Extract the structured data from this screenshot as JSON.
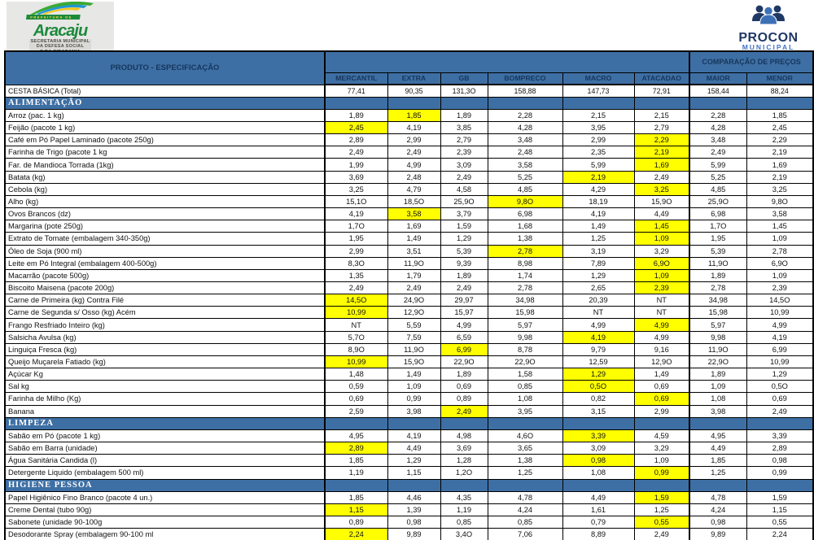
{
  "logos": {
    "aracaju": {
      "banner": "PREFEITURA DE",
      "city": "Aracaju",
      "secretaria_lines": [
        "SECRETARIA MUNICIPAL",
        "DA DEFESA SOCIAL",
        "E DA CIDADANIA"
      ]
    },
    "procon": {
      "name": "PROCON",
      "sub": "MUNICIPAL"
    }
  },
  "colors": {
    "header_blue": "#3e6fa4",
    "header_text_navy": "#16365c",
    "highlight_yellow": "#ffff00",
    "aracaju_green": "#1d8a3c",
    "procon_navy": "#1f3864",
    "procon_blue": "#4472c4"
  },
  "table": {
    "product_header": "PRODUTO - ESPECIFICAÇÃO",
    "comparison_header": "COMPARAÇÃO DE PREÇOS",
    "columns": [
      "MERCANTIL",
      "EXTRA",
      "GB",
      "BOMPRECO",
      "MACRO",
      "ATACADAO",
      "MAIOR",
      "MENOR"
    ],
    "total_row": {
      "label": "CESTA BÁSICA (Total)",
      "values": [
        "77,41",
        "90,35",
        "131,3O",
        "158,88",
        "147,73",
        "72,91",
        "158,44",
        "88,24"
      ],
      "highlight": []
    },
    "sections": [
      {
        "title": "ALIMENTAÇÃO",
        "rows": [
          {
            "label": "Arroz (pac. 1 kg)",
            "values": [
              "1,89",
              "1,85",
              "1,89",
              "2,28",
              "2,15",
              "2,15",
              "2,28",
              "1,85"
            ],
            "highlight": [
              1
            ]
          },
          {
            "label": "Feijão  (pacote 1 kg)",
            "values": [
              "2,45",
              "4,19",
              "3,85",
              "4,28",
              "3,95",
              "2,79",
              "4,28",
              "2,45"
            ],
            "highlight": [
              0
            ]
          },
          {
            "label": "Café em Pó Papel Laminado (pacote 250g)",
            "values": [
              "2,89",
              "2,99",
              "2,79",
              "3,48",
              "2,99",
              "2,29",
              "3,48",
              "2,29"
            ],
            "highlight": [
              5
            ]
          },
          {
            "label": "Farinha de Trigo (pacote 1 kg",
            "values": [
              "2,49",
              "2,49",
              "2,39",
              "2,48",
              "2,35",
              "2,19",
              "2,49",
              "2,19"
            ],
            "highlight": [
              5
            ]
          },
          {
            "label": "Far. de Mandioca Torrada (1kg)",
            "values": [
              "1,99",
              "4,99",
              "3,09",
              "3,58",
              "5,99",
              "1,69",
              "5,99",
              "1,69"
            ],
            "highlight": [
              5
            ]
          },
          {
            "label": "Batata (kg)",
            "values": [
              "3,69",
              "2,48",
              "2,49",
              "5,25",
              "2,19",
              "2,49",
              "5,25",
              "2,19"
            ],
            "highlight": [
              4
            ]
          },
          {
            "label": "Cebola  (kg)",
            "values": [
              "3,25",
              "4,79",
              "4,58",
              "4,85",
              "4,29",
              "3,25",
              "4,85",
              "3,25"
            ],
            "highlight": [
              5
            ]
          },
          {
            "label": "Alho (kg)",
            "values": [
              "15,1O",
              "18,5O",
              "25,9O",
              "9,8O",
              "18,19",
              "15,9O",
              "25,9O",
              "9,8O"
            ],
            "highlight": [
              3
            ]
          },
          {
            "label": "Ovos Brancos (dz)",
            "values": [
              "4,19",
              "3,58",
              "3,79",
              "6,98",
              "4,19",
              "4,49",
              "6,98",
              "3,58"
            ],
            "highlight": [
              1
            ]
          },
          {
            "label": "Margarina (pote 250g)",
            "values": [
              "1,7O",
              "1,69",
              "1,59",
              "1,68",
              "1,49",
              "1,45",
              "1,7O",
              "1,45"
            ],
            "highlight": [
              5
            ]
          },
          {
            "label": "Extrato de Tomate (embalagem 340-350g)",
            "values": [
              "1,95",
              "1,49",
              "1,29",
              "1,38",
              "1,25",
              "1,09",
              "1,95",
              "1,09"
            ],
            "highlight": [
              5
            ]
          },
          {
            "label": "Óleo de Soja (900 ml)",
            "values": [
              "2,99",
              "3,51",
              "5,39",
              "2,78",
              "3,19",
              "3,29",
              "5,39",
              "2,78"
            ],
            "highlight": [
              3
            ]
          },
          {
            "label": "Leite em Pó Integral (embalagem 400-500g)",
            "values": [
              "8,3O",
              "11,9O",
              "9,39",
              "8,98",
              "7,89",
              "6,9O",
              "11,9O",
              "6,9O"
            ],
            "highlight": [
              5
            ]
          },
          {
            "label": "Macarrão  (pacote 500g)",
            "values": [
              "1,35",
              "1,79",
              "1,89",
              "1,74",
              "1,29",
              "1,09",
              "1,89",
              "1,09"
            ],
            "highlight": [
              5
            ]
          },
          {
            "label": "Biscoito Maisena (pacote 200g)",
            "values": [
              "2,49",
              "2,49",
              "2,49",
              "2,78",
              "2,65",
              "2,39",
              "2,78",
              "2,39"
            ],
            "highlight": [
              5
            ]
          },
          {
            "label": "Carne de Primeira (kg) Contra Filé",
            "values": [
              "14,5O",
              "24,9O",
              "29,97",
              "34,98",
              "20,39",
              "NT",
              "34,98",
              "14,5O"
            ],
            "highlight": [
              0
            ]
          },
          {
            "label": "Carne de Segunda s/ Osso (kg) Acém",
            "values": [
              "10,99",
              "12,9O",
              "15,97",
              "15,98",
              "NT",
              "NT",
              "15,98",
              "10,99"
            ],
            "highlight": [
              0
            ]
          },
          {
            "label": "Frango Resfriado Inteiro (kg)",
            "values": [
              "NT",
              "5,59",
              "4,99",
              "5,97",
              "4,99",
              "4,99",
              "5,97",
              "4,99"
            ],
            "highlight": [
              5
            ]
          },
          {
            "label": "Salsicha Avulsa (kg)",
            "values": [
              "5,7O",
              "7,59",
              "6,59",
              "9,98",
              "4,19",
              "4,99",
              "9,98",
              "4,19"
            ],
            "highlight": [
              4
            ]
          },
          {
            "label": "Linguiça Fresca (kg)",
            "values": [
              "8,9O",
              "11,9O",
              "6,99",
              "8,78",
              "9,79",
              "9,16",
              "11,9O",
              "6,99"
            ],
            "highlight": [
              2
            ]
          },
          {
            "label": "Queijo Muçarela Fatiado (kg)",
            "values": [
              "10,99",
              "15,9O",
              "22,9O",
              "22,9O",
              "12,59",
              "12,9O",
              "22,9O",
              "10,99"
            ],
            "highlight": [
              0
            ]
          },
          {
            "label": "Açúcar Kg",
            "values": [
              "1,48",
              "1,49",
              "1,89",
              "1,58",
              "1,29",
              "1,49",
              "1,89",
              "1,29"
            ],
            "highlight": [
              4
            ]
          },
          {
            "label": "Sal kg",
            "values": [
              "0,59",
              "1,09",
              "0,69",
              "0,85",
              "0,5O",
              "0,69",
              "1,09",
              "0,5O"
            ],
            "highlight": [
              4
            ]
          },
          {
            "label": "Farinha de Milho (Kg)",
            "values": [
              "0,69",
              "0,99",
              "0,89",
              "1,08",
              "0,82",
              "0,69",
              "1,08",
              "0,69"
            ],
            "highlight": [
              5
            ]
          },
          {
            "label": "Banana",
            "values": [
              "2,59",
              "3,98",
              "2,49",
              "3,95",
              "3,15",
              "2,99",
              "3,98",
              "2,49"
            ],
            "highlight": [
              2
            ]
          }
        ]
      },
      {
        "title": "LIMPEZA",
        "rows": [
          {
            "label": "Sabão em Pó (pacote 1 kg)",
            "values": [
              "4,95",
              "4,19",
              "4,98",
              "4,6O",
              "3,39",
              "4,59",
              "4,95",
              "3,39"
            ],
            "highlight": [
              4
            ]
          },
          {
            "label": "Sabão em Barra (unidade)",
            "values": [
              "2,89",
              "4,49",
              "3,69",
              "3,65",
              "3,09",
              "3,29",
              "4,49",
              "2,89"
            ],
            "highlight": [
              0
            ]
          },
          {
            "label": "Água Sanitária Candida (l)",
            "values": [
              "1,85",
              "1,29",
              "1,28",
              "1,38",
              "0,98",
              "1,09",
              "1,85",
              "0,98"
            ],
            "highlight": [
              4
            ]
          },
          {
            "label": "Detergente Liquido (embalagem 500 ml)",
            "values": [
              "1,19",
              "1,15",
              "1,2O",
              "1,25",
              "1,08",
              "0,99",
              "1,25",
              "0,99"
            ],
            "highlight": [
              5
            ]
          }
        ]
      },
      {
        "title": "HIGIENE PESSOA",
        "rows": [
          {
            "label": "Papel Higiênico Fino Branco (pacote 4 un.)",
            "values": [
              "1,85",
              "4,46",
              "4,35",
              "4,78",
              "4,49",
              "1,59",
              "4,78",
              "1,59"
            ],
            "highlight": [
              5
            ]
          },
          {
            "label": "Creme Dental (tubo 90g)",
            "values": [
              "1,15",
              "1,39",
              "1,19",
              "4,24",
              "1,61",
              "1,25",
              "4,24",
              "1,15"
            ],
            "highlight": [
              0
            ]
          },
          {
            "label": "Sabonete (unidade 90-100g",
            "values": [
              "0,89",
              "0,98",
              "0,85",
              "0,85",
              "0,79",
              "0,55",
              "0,98",
              "0,55"
            ],
            "highlight": [
              5
            ]
          },
          {
            "label": "Desodorante Spray (embalagem 90-100 ml",
            "values": [
              "2,24",
              "9,89",
              "3,4O",
              "7,06",
              "8,89",
              "2,49",
              "9,89",
              "2,24"
            ],
            "highlight": [
              0
            ]
          }
        ]
      }
    ]
  }
}
